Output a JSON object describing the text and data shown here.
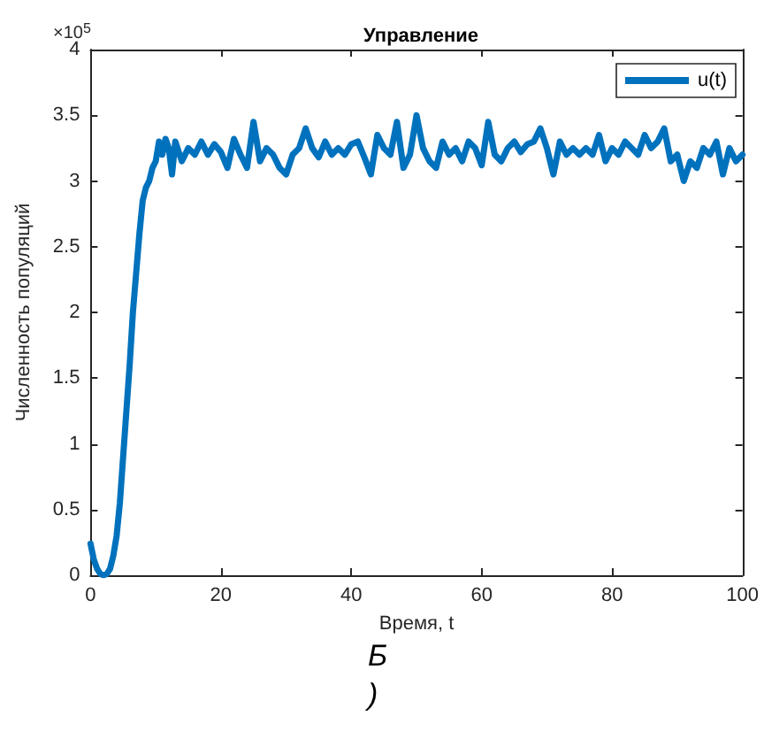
{
  "chart_data": {
    "type": "line",
    "title": "Управление",
    "xlabel": "Время, t",
    "ylabel": "Численность популяций",
    "annotations": [
      "×10$^{5}$",
      "Б",
      ")"
    ],
    "legend": "top right",
    "grid": false,
    "marker": "none",
    "line_style": "solid",
    "xlim": [
      0,
      100
    ],
    "xticks": [
      0,
      20,
      40,
      60,
      80,
      100
    ],
    "ylim": [
      0,
      4
    ],
    "yticks": [
      0,
      0.5,
      1,
      1.5,
      2,
      2.5,
      3,
      3.5,
      4
    ],
    "series": [
      {
        "name": "u(t)",
        "color": "#0072bd",
        "x": [
          0,
          0.5,
          1,
          1.5,
          2,
          2.5,
          3,
          3.5,
          4,
          4.5,
          5,
          5.5,
          6,
          6.5,
          7,
          7.5,
          8,
          8.5,
          9,
          9.5,
          10,
          10.5,
          11,
          11.5,
          12,
          12.5,
          13,
          14,
          15,
          16,
          17,
          18,
          19,
          20,
          21,
          22,
          23,
          24,
          25,
          26,
          27,
          28,
          29,
          30,
          31,
          32,
          33,
          34,
          35,
          36,
          37,
          38,
          39,
          40,
          41,
          42,
          43,
          44,
          45,
          46,
          47,
          48,
          49,
          50,
          51,
          52,
          53,
          54,
          55,
          56,
          57,
          58,
          59,
          60,
          61,
          62,
          63,
          64,
          65,
          66,
          67,
          68,
          69,
          70,
          71,
          72,
          73,
          74,
          75,
          76,
          77,
          78,
          79,
          80,
          81,
          82,
          83,
          84,
          85,
          86,
          87,
          88,
          89,
          90,
          91,
          92,
          93,
          94,
          95,
          96,
          97,
          98,
          99,
          100
        ],
        "values": [
          0.24,
          0.12,
          0.05,
          0.01,
          0,
          0.01,
          0.05,
          0.15,
          0.3,
          0.55,
          0.9,
          1.25,
          1.6,
          2.0,
          2.3,
          2.6,
          2.85,
          2.95,
          3.0,
          3.1,
          3.15,
          3.3,
          3.2,
          3.32,
          3.25,
          3.05,
          3.3,
          3.15,
          3.25,
          3.2,
          3.3,
          3.2,
          3.28,
          3.22,
          3.1,
          3.32,
          3.2,
          3.1,
          3.45,
          3.15,
          3.25,
          3.2,
          3.1,
          3.05,
          3.2,
          3.25,
          3.4,
          3.25,
          3.18,
          3.3,
          3.2,
          3.25,
          3.2,
          3.28,
          3.3,
          3.18,
          3.05,
          3.35,
          3.25,
          3.2,
          3.45,
          3.1,
          3.2,
          3.5,
          3.25,
          3.15,
          3.1,
          3.3,
          3.2,
          3.25,
          3.15,
          3.3,
          3.25,
          3.12,
          3.45,
          3.2,
          3.15,
          3.25,
          3.3,
          3.22,
          3.28,
          3.3,
          3.4,
          3.25,
          3.05,
          3.3,
          3.2,
          3.25,
          3.2,
          3.25,
          3.2,
          3.35,
          3.15,
          3.25,
          3.2,
          3.3,
          3.25,
          3.2,
          3.35,
          3.25,
          3.3,
          3.4,
          3.15,
          3.2,
          3.0,
          3.15,
          3.1,
          3.25,
          3.2,
          3.3,
          3.05,
          3.25,
          3.15,
          3.2
        ]
      }
    ]
  }
}
